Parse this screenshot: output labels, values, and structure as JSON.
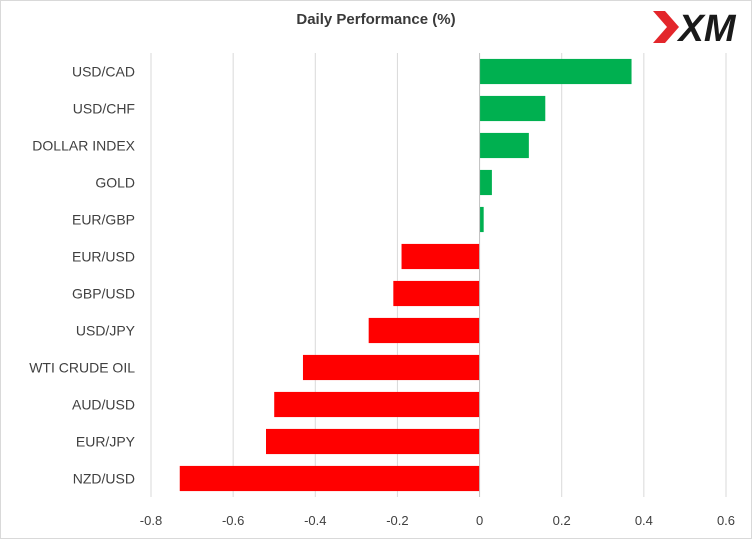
{
  "chart_data": {
    "type": "bar",
    "orientation": "horizontal",
    "title": "Daily Performance (%)",
    "xlabel": "",
    "ylabel": "",
    "categories": [
      "USD/CAD",
      "USD/CHF",
      "DOLLAR INDEX",
      "GOLD",
      "EUR/GBP",
      "EUR/USD",
      "GBP/USD",
      "USD/JPY",
      "WTI CRUDE OIL",
      "AUD/USD",
      "EUR/JPY",
      "NZD/USD"
    ],
    "values": [
      0.37,
      0.16,
      0.12,
      0.03,
      0.01,
      -0.19,
      -0.21,
      -0.27,
      -0.43,
      -0.5,
      -0.52,
      -0.73
    ],
    "xlim": [
      -0.8,
      0.6
    ],
    "xticks": [
      -0.8,
      -0.6,
      -0.4,
      -0.2,
      0,
      0.2,
      0.4,
      0.6
    ],
    "xtick_labels": [
      "-0.8",
      "-0.6",
      "-0.4",
      "-0.2",
      "0",
      "0.2",
      "0.4",
      "0.6"
    ],
    "grid": "vertical",
    "legend": "none",
    "colors": {
      "positive": "#00b050",
      "negative": "#ff0000",
      "grid": "#d9d9d9",
      "axis": "#bfbfbf"
    }
  },
  "logo": {
    "text": "XM",
    "icon": "xm-brand-logo",
    "color_dark": "#1a1a1a",
    "color_accent": "#e3262b"
  }
}
